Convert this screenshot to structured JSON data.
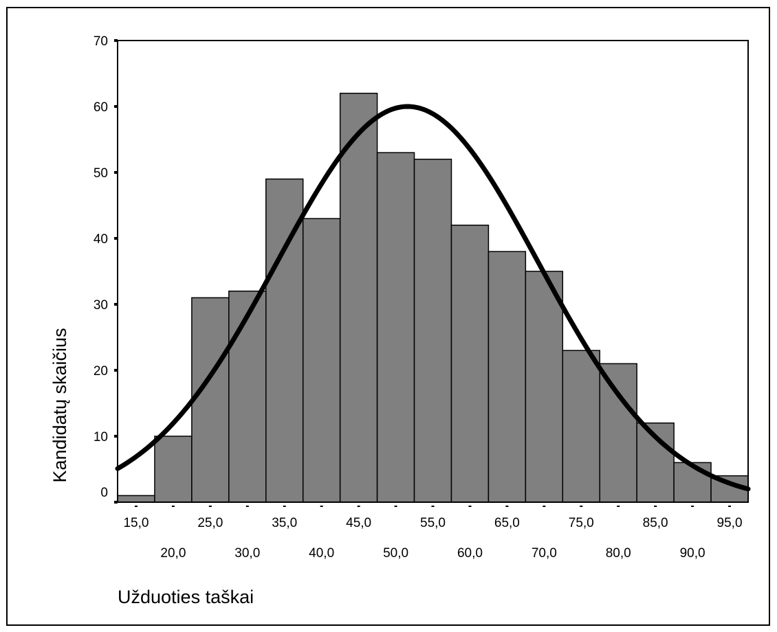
{
  "chart_data": {
    "type": "bar",
    "title": "",
    "xlabel": "Užduoties taškai",
    "ylabel": "Kandidatų skaičius",
    "bin_centers": [
      15,
      20,
      25,
      30,
      35,
      40,
      45,
      50,
      55,
      60,
      65,
      70,
      75,
      80,
      85,
      90,
      95
    ],
    "values": [
      1,
      10,
      31,
      32,
      49,
      43,
      62,
      53,
      52,
      42,
      38,
      35,
      23,
      21,
      12,
      6,
      4
    ],
    "x_tick_labels_upper": [
      "15,0",
      "25,0",
      "35,0",
      "45,0",
      "55,0",
      "65,0",
      "75,0",
      "85,0",
      "95,0"
    ],
    "x_tick_labels_lower": [
      "20,0",
      "30,0",
      "40,0",
      "50,0",
      "60,0",
      "70,0",
      "80,0",
      "90,0"
    ],
    "y_ticks": [
      "0",
      "10",
      "20",
      "30",
      "40",
      "50",
      "60",
      "70"
    ],
    "ylim": [
      0,
      70
    ],
    "xlim": [
      12.5,
      97.5
    ],
    "normal_curve": {
      "mean": 51.6,
      "sd": 17.6,
      "peak": 60
    },
    "grid": false,
    "colors": {
      "bar_fill": "#808080",
      "bar_stroke": "#000000",
      "curve": "#000000"
    }
  }
}
